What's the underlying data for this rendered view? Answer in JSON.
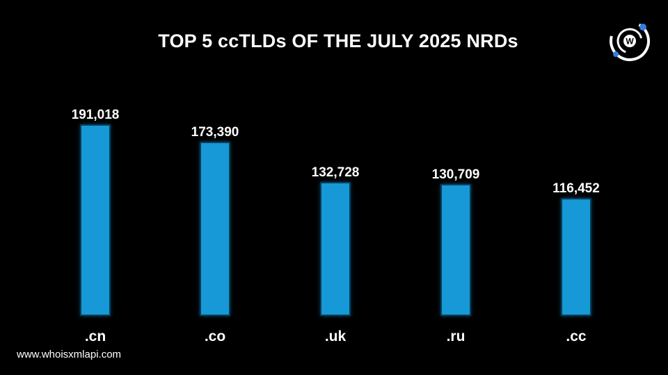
{
  "title": "TOP 5 ccTLDs OF THE JULY 2025 NRDs",
  "footer": {
    "website": "www.whoisxmlapi.com"
  },
  "logo": {
    "icon": "whoisxmlapi-logo-icon",
    "letter": "W"
  },
  "colors": {
    "background": "#000000",
    "bar": "#1699d6",
    "bar_glow": "#0f6fa0",
    "text": "#ffffff",
    "logo_accent": "#2f7fe0"
  },
  "chart_data": {
    "type": "bar",
    "title": "TOP 5 ccTLDs OF THE JULY 2025 NRDs",
    "categories": [
      ".cn",
      ".co",
      ".uk",
      ".ru",
      ".cc"
    ],
    "values": [
      191018,
      173390,
      132728,
      130709,
      116452
    ],
    "value_labels": [
      "191,018",
      "173,390",
      "132,728",
      "130,709",
      "116,452"
    ],
    "xlabel": "",
    "ylabel": "",
    "ylim": [
      0,
      191018
    ],
    "grid": false,
    "legend": "none"
  }
}
